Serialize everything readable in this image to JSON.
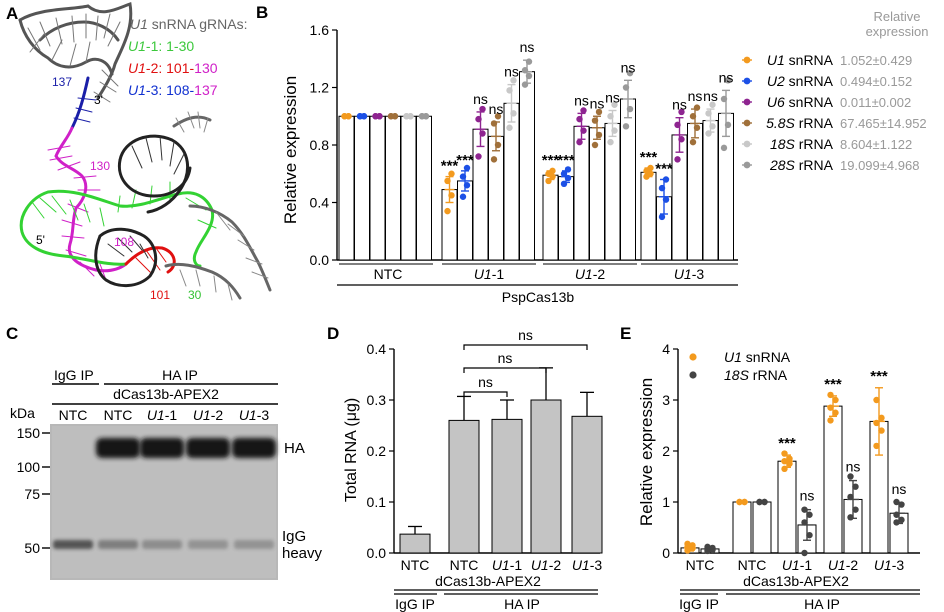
{
  "panels": {
    "A": {
      "letter": "A",
      "legend_title_gene": "U1",
      "legend_title_rest": " snRNA gRNAs:",
      "guides": [
        {
          "gene": "U1",
          "suffix": "-1: ",
          "range_a": "1",
          "dash": "-",
          "range_b": "30",
          "color": "#3cc83c",
          "color_b": "#3cc83c"
        },
        {
          "gene": "U1",
          "suffix": "-2: ",
          "range_a": "101",
          "dash": "-",
          "range_b": "130",
          "color": "#e01010",
          "color_b": "#d020c8"
        },
        {
          "gene": "U1",
          "suffix": "-3: ",
          "range_a": "108",
          "dash": "-",
          "range_b": "137",
          "color": "#1030d0",
          "color_b": "#d020c8"
        }
      ],
      "structure_labels": [
        "137",
        "3'",
        "130",
        "5'",
        "108",
        "101",
        "30"
      ]
    },
    "B": {
      "letter": "B",
      "ylabel": "Relative expression",
      "yticks": [
        "0.0",
        "0.4",
        "0.8",
        "1.2",
        "1.6"
      ],
      "group_labels": [
        {
          "gene": "",
          "rest": "NTC"
        },
        {
          "gene": "U1",
          "rest": "-1"
        },
        {
          "gene": "U1",
          "rest": "-2"
        },
        {
          "gene": "U1",
          "rest": "-3"
        }
      ],
      "bottom_label": "PspCas13b",
      "legend_header": [
        "Relative",
        "expression"
      ],
      "series": [
        {
          "name_gene": "U1",
          "name_rest": " snRNA",
          "color": "#f39a1e",
          "value": "1.052±0.429"
        },
        {
          "name_gene": "U2",
          "name_rest": " snRNA",
          "color": "#1c50e6",
          "value": "0.494±0.152"
        },
        {
          "name_gene": "U6",
          "name_rest": " snRNA",
          "color": "#8e2490",
          "value": "0.011±0.002"
        },
        {
          "name_gene": "5.8S",
          "name_rest": " rRNA",
          "color": "#a0703a",
          "value": "67.465±14.952"
        },
        {
          "name_gene": "18S",
          "name_rest": " rRNA",
          "color": "#c8c8c8",
          "value": "8.604±1.122"
        },
        {
          "name_gene": "28S",
          "name_rest": " rRNA",
          "color": "#9a9a9a",
          "value": "19.099±4.968"
        }
      ],
      "significance": [
        [
          "",
          "",
          "",
          "",
          "",
          ""
        ],
        [
          "***",
          "***",
          "ns",
          "ns",
          "ns",
          "ns"
        ],
        [
          "***",
          "***",
          "ns",
          "ns",
          "ns",
          "ns"
        ],
        [
          "***",
          "***",
          "ns",
          "ns",
          "ns",
          "ns"
        ]
      ]
    },
    "C": {
      "letter": "C",
      "ip_labels": [
        "IgG IP",
        "HA IP"
      ],
      "construct": "dCas13b-APEX2",
      "kda": "kDa",
      "lanes": [
        {
          "gene": "",
          "rest": "NTC"
        },
        {
          "gene": "",
          "rest": "NTC"
        },
        {
          "gene": "U1",
          "rest": "-1"
        },
        {
          "gene": "U1",
          "rest": "-2"
        },
        {
          "gene": "U1",
          "rest": "-3"
        }
      ],
      "markers": [
        "150",
        "100",
        "75",
        "50"
      ],
      "band_labels": [
        "HA",
        "IgG",
        "heavy"
      ]
    },
    "D": {
      "letter": "D",
      "ylabel": "Total RNA (μg)",
      "yticks": [
        "0.0",
        "0.1",
        "0.2",
        "0.3",
        "0.4"
      ],
      "ns": "ns",
      "construct": "dCas13b-APEX2",
      "ip_labels": [
        "IgG IP",
        "HA IP"
      ]
    },
    "E": {
      "letter": "E",
      "ylabel": "Relative expression",
      "yticks": [
        "0",
        "1",
        "2",
        "3",
        "4"
      ],
      "legend": [
        {
          "name_gene": "U1",
          "name_rest": " snRNA",
          "color": "#f39a1e"
        },
        {
          "name_gene": "18S",
          "name_rest": " rRNA",
          "color": "#444444"
        }
      ],
      "construct": "dCas13b-APEX2",
      "ip_labels": [
        "IgG IP",
        "HA IP"
      ]
    }
  },
  "chart_data": [
    {
      "panel": "B",
      "type": "bar",
      "title": "",
      "ylabel": "Relative expression",
      "ylim": [
        0,
        1.6
      ],
      "groups": [
        "NTC",
        "U1-1",
        "U1-2",
        "U1-3"
      ],
      "series": [
        {
          "name": "U1 snRNA",
          "values": [
            1.0,
            0.49,
            0.59,
            0.61
          ]
        },
        {
          "name": "U2 snRNA",
          "values": [
            1.0,
            0.55,
            0.58,
            0.44
          ]
        },
        {
          "name": "U6 snRNA",
          "values": [
            1.0,
            0.91,
            0.93,
            0.87
          ]
        },
        {
          "name": "5.8S rRNA",
          "values": [
            1.0,
            0.86,
            0.92,
            0.95
          ]
        },
        {
          "name": "18S rRNA",
          "values": [
            1.0,
            1.09,
            0.95,
            0.97
          ]
        },
        {
          "name": "28S rRNA",
          "values": [
            1.0,
            1.31,
            1.12,
            1.02
          ]
        }
      ],
      "errors": [
        [
          0.0,
          0.0,
          0.0,
          0.0,
          0.0,
          0.0
        ],
        [
          0.09,
          0.07,
          0.12,
          0.1,
          0.13,
          0.08
        ],
        [
          0.03,
          0.04,
          0.09,
          0.08,
          0.09,
          0.13
        ],
        [
          0.03,
          0.12,
          0.12,
          0.1,
          0.08,
          0.16
        ]
      ],
      "points": [
        [
          [
            1.0,
            1.0,
            1.0,
            1.0
          ],
          [
            1.0,
            1.0,
            1.0,
            1.0
          ],
          [
            1.0,
            1.0,
            1.0,
            1.0
          ],
          [
            1.0,
            1.0,
            1.0,
            1.0
          ],
          [
            1.0,
            1.0,
            1.0,
            1.0
          ],
          [
            1.0,
            1.0,
            1.0,
            1.0
          ]
        ],
        [
          [
            0.34,
            0.45,
            0.55,
            0.6
          ],
          [
            0.44,
            0.52,
            0.58,
            0.64
          ],
          [
            0.72,
            0.88,
            0.98,
            1.05
          ],
          [
            0.7,
            0.8,
            0.95,
            1.0
          ],
          [
            0.92,
            1.02,
            1.18,
            1.25
          ],
          [
            1.22,
            1.28,
            1.32,
            1.38
          ]
        ],
        [
          [
            0.55,
            0.58,
            0.6,
            0.62
          ],
          [
            0.53,
            0.57,
            0.6,
            0.63
          ],
          [
            0.82,
            0.9,
            0.98,
            1.04
          ],
          [
            0.8,
            0.87,
            0.97,
            1.03
          ],
          [
            0.82,
            0.9,
            1.0,
            1.08
          ],
          [
            0.93,
            1.05,
            1.2,
            1.3
          ]
        ],
        [
          [
            0.58,
            0.6,
            0.62,
            0.64
          ],
          [
            0.3,
            0.42,
            0.5,
            0.56
          ],
          [
            0.7,
            0.84,
            0.94,
            1.03
          ],
          [
            0.82,
            0.92,
            1.0,
            1.06
          ],
          [
            0.88,
            0.93,
            1.02,
            1.08
          ],
          [
            0.78,
            0.94,
            1.12,
            1.25
          ]
        ]
      ]
    },
    {
      "panel": "D",
      "type": "bar",
      "title": "",
      "ylabel": "Total RNA (μg)",
      "ylim": [
        0,
        0.4
      ],
      "categories": [
        "NTC",
        "NTC",
        "U1-1",
        "U1-2",
        "U1-3"
      ],
      "values": [
        0.037,
        0.26,
        0.262,
        0.3,
        0.268
      ],
      "errors": [
        0.015,
        0.047,
        0.038,
        0.063,
        0.047
      ],
      "comparisons": [
        {
          "from": 1,
          "to": 2,
          "label": "ns"
        },
        {
          "from": 1,
          "to": 3,
          "label": "ns"
        },
        {
          "from": 1,
          "to": 4,
          "label": "ns"
        }
      ]
    },
    {
      "panel": "E",
      "type": "bar",
      "title": "",
      "ylabel": "Relative expression",
      "ylim": [
        0,
        4
      ],
      "categories": [
        "NTC",
        "NTC",
        "U1-1",
        "U1-2",
        "U1-3"
      ],
      "series": [
        {
          "name": "U1 snRNA",
          "values": [
            0.1,
            1.0,
            1.8,
            2.88,
            2.58
          ],
          "errors": [
            0.06,
            0.0,
            0.12,
            0.2,
            0.66
          ]
        },
        {
          "name": "18S rRNA",
          "values": [
            0.08,
            1.0,
            0.55,
            1.05,
            0.78
          ],
          "errors": [
            0.03,
            0.0,
            0.3,
            0.37,
            0.2
          ]
        }
      ],
      "significance": [
        [
          "",
          ""
        ],
        [
          "",
          ""
        ],
        [
          "***",
          "ns"
        ],
        [
          "***",
          "ns"
        ],
        [
          "***",
          "ns"
        ]
      ],
      "points": [
        [
          [
            0.05,
            0.09,
            0.12,
            0.15,
            0.18
          ],
          [
            0.04,
            0.06,
            0.08,
            0.1,
            0.12
          ]
        ],
        [
          [
            1.0,
            1.0,
            1.0,
            1.0
          ],
          [
            1.0,
            1.0,
            1.0,
            1.0
          ]
        ],
        [
          [
            1.65,
            1.75,
            1.8,
            1.85,
            1.95
          ],
          [
            0.0,
            0.35,
            0.6,
            0.75,
            0.85
          ]
        ],
        [
          [
            2.6,
            2.75,
            2.85,
            3.0,
            3.1
          ],
          [
            0.7,
            0.85,
            1.1,
            1.3,
            1.5
          ]
        ],
        [
          [
            2.1,
            2.4,
            2.55,
            2.65,
            3.0
          ],
          [
            0.6,
            0.65,
            0.75,
            0.95,
            1.0
          ]
        ]
      ]
    }
  ]
}
